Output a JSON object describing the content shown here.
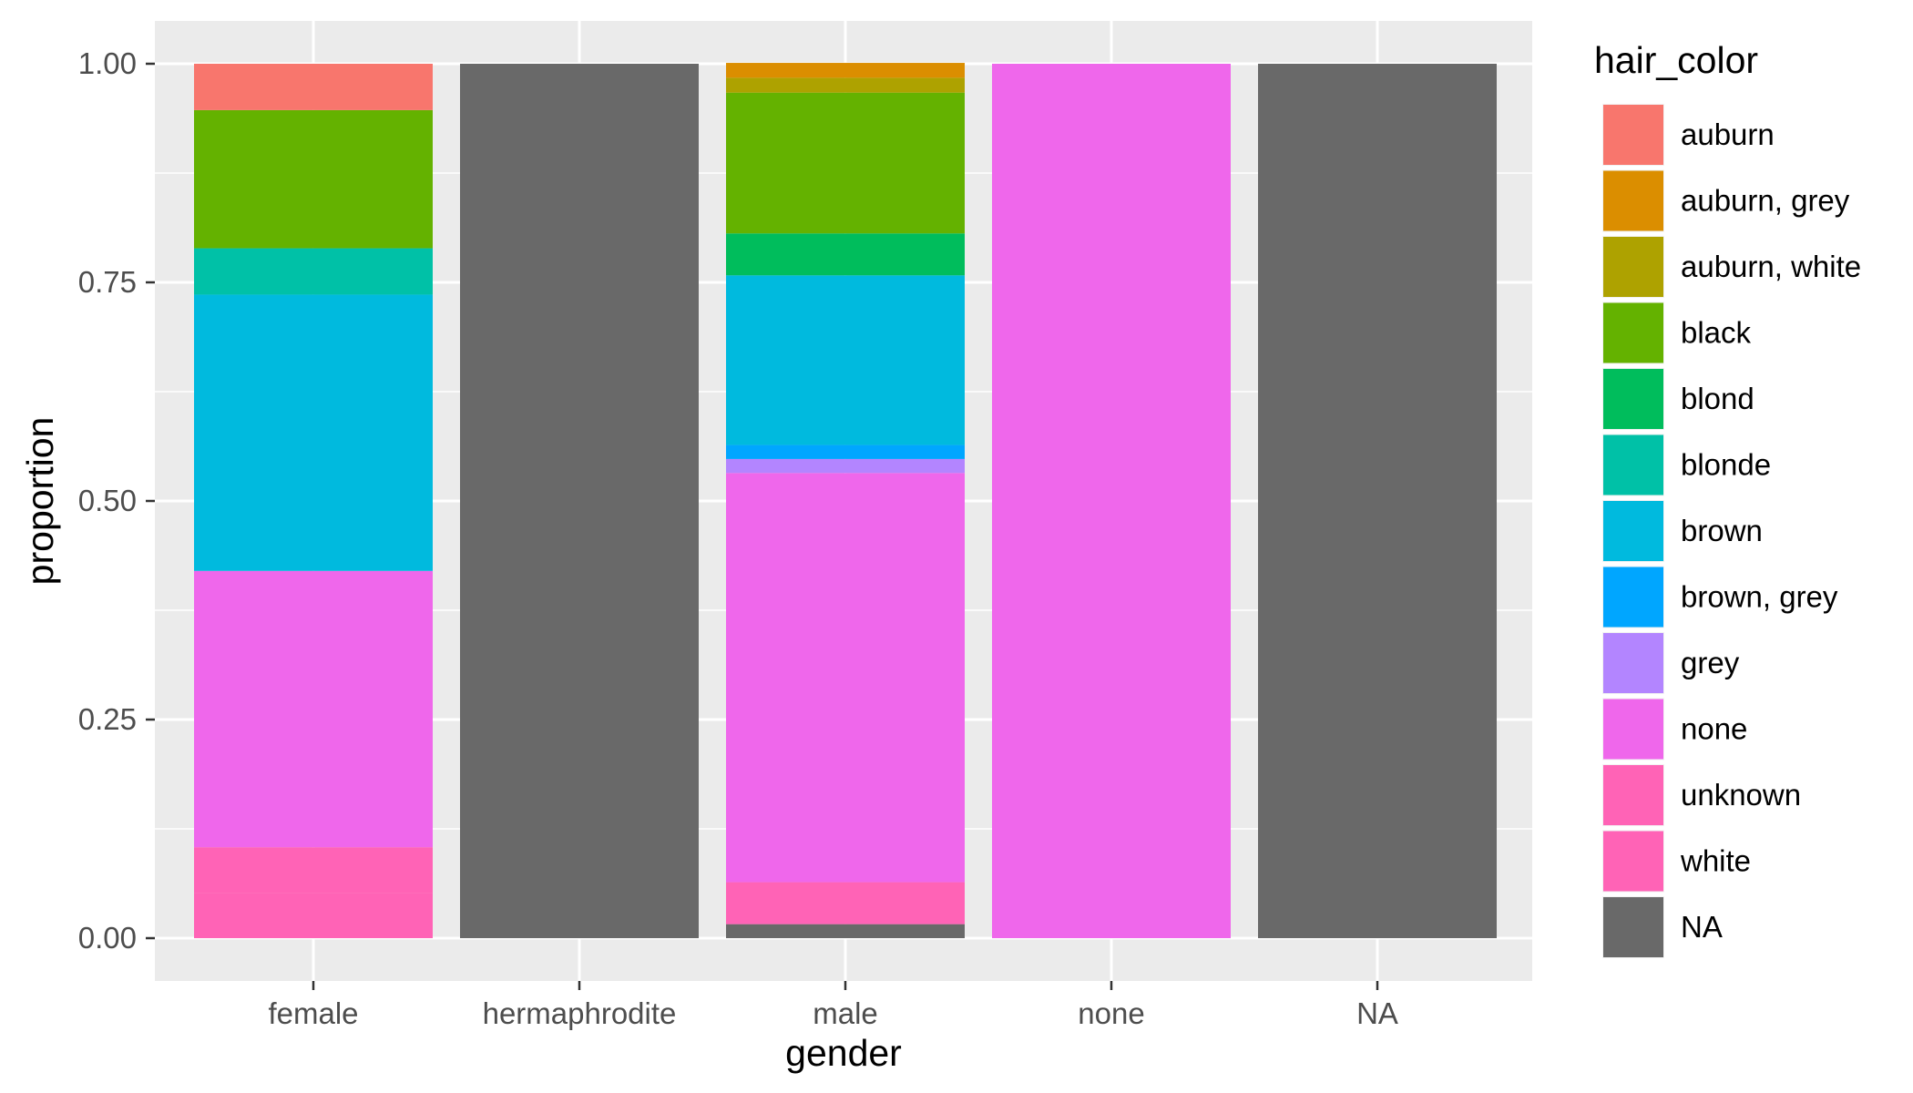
{
  "chart_data": {
    "type": "bar",
    "stacked": true,
    "position": "fill",
    "title": "",
    "xlabel": "gender",
    "ylabel": "proportion",
    "ylim": [
      0,
      1
    ],
    "y_ticks": [
      "0.00",
      "0.25",
      "0.50",
      "0.75",
      "1.00"
    ],
    "y_tick_values": [
      0,
      0.25,
      0.5,
      0.75,
      1.0
    ],
    "categories": [
      "female",
      "hermaphrodite",
      "male",
      "none",
      "NA"
    ],
    "legend_title": "hair_color",
    "legend_position": "right",
    "grid": true,
    "series": [
      {
        "name": "auburn",
        "color": "#F8766D",
        "values": [
          0.053,
          0,
          0,
          0,
          0
        ]
      },
      {
        "name": "auburn, grey",
        "color": "#DB8E00",
        "values": [
          0,
          0,
          0.017,
          0,
          0
        ]
      },
      {
        "name": "auburn, white",
        "color": "#AEA200",
        "values": [
          0,
          0,
          0.017,
          0,
          0
        ]
      },
      {
        "name": "black",
        "color": "#64B200",
        "values": [
          0.158,
          0,
          0.161,
          0,
          0
        ]
      },
      {
        "name": "blond",
        "color": "#00BD5C",
        "values": [
          0,
          0,
          0.048,
          0,
          0
        ]
      },
      {
        "name": "blonde",
        "color": "#00C1A7",
        "values": [
          0.053,
          0,
          0,
          0,
          0
        ]
      },
      {
        "name": "brown",
        "color": "#00BADE",
        "values": [
          0.316,
          0,
          0.194,
          0,
          0
        ]
      },
      {
        "name": "brown, grey",
        "color": "#00A6FF",
        "values": [
          0,
          0,
          0.016,
          0,
          0
        ]
      },
      {
        "name": "grey",
        "color": "#B385FF",
        "values": [
          0,
          0,
          0.016,
          0,
          0
        ]
      },
      {
        "name": "none",
        "color": "#EF67EB",
        "values": [
          0.316,
          0,
          0.468,
          1,
          0
        ]
      },
      {
        "name": "unknown",
        "color": "#FF63B6",
        "values": [
          0.052,
          0,
          0,
          0,
          0
        ]
      },
      {
        "name": "white",
        "color": "#FF63B6",
        "values": [
          0.052,
          0,
          0.048,
          0,
          0
        ]
      },
      {
        "name": "NA",
        "color": "#696969",
        "values": [
          0,
          1,
          0.016,
          0,
          1
        ]
      }
    ]
  },
  "colors": {
    "panel_background": "#EBEBEB",
    "grid_major": "#FFFFFF",
    "tick_text": "#4D4D4D"
  }
}
